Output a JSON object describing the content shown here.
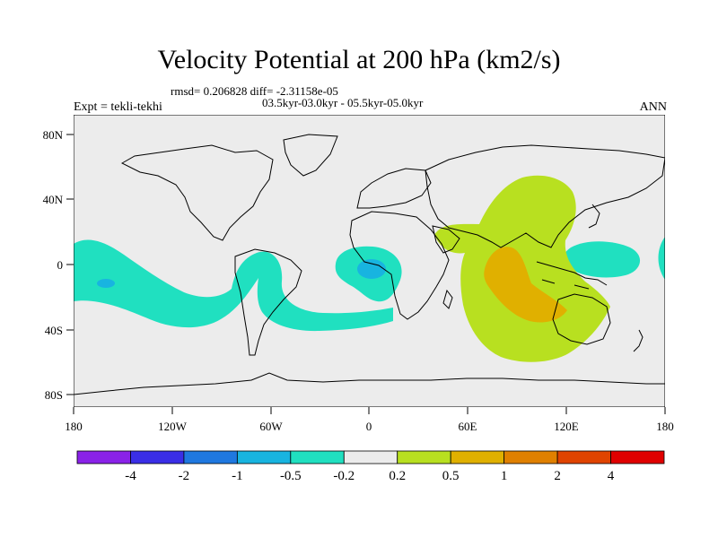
{
  "header": {
    "title": "Velocity Potential at 200 hPa (km2/s)",
    "rmsd_line": "rmsd= 0.206828 diff= -2.31158e-05",
    "period_line": "03.5kyr-03.0kyr - 05.5kyr-05.0kyr",
    "experiment": "Expt = tekli-tekhi",
    "season": "ANN"
  },
  "axes": {
    "x_ticks": [
      "180",
      "120W",
      "60W",
      "0",
      "60E",
      "120E",
      "180"
    ],
    "y_ticks": [
      "80N",
      "40N",
      "0",
      "40S",
      "80S"
    ]
  },
  "colorbar": {
    "labels": [
      "-4",
      "-2",
      "-1",
      "-0.5",
      "-0.2",
      "0.2",
      "0.5",
      "1",
      "2",
      "4"
    ],
    "colors": [
      "#8a22e8",
      "#3a2ee6",
      "#1f78e0",
      "#18b4e0",
      "#20e0c0",
      "#ececec",
      "#b8e020",
      "#e0b000",
      "#e08000",
      "#e04400",
      "#e00000"
    ]
  },
  "map_colors": {
    "background": "#ececec",
    "negative_weak": "#20e0c0",
    "negative_mid": "#18b4e0",
    "positive_weak": "#b8e020",
    "positive_mid": "#e0b000",
    "coast": "#000000"
  }
}
